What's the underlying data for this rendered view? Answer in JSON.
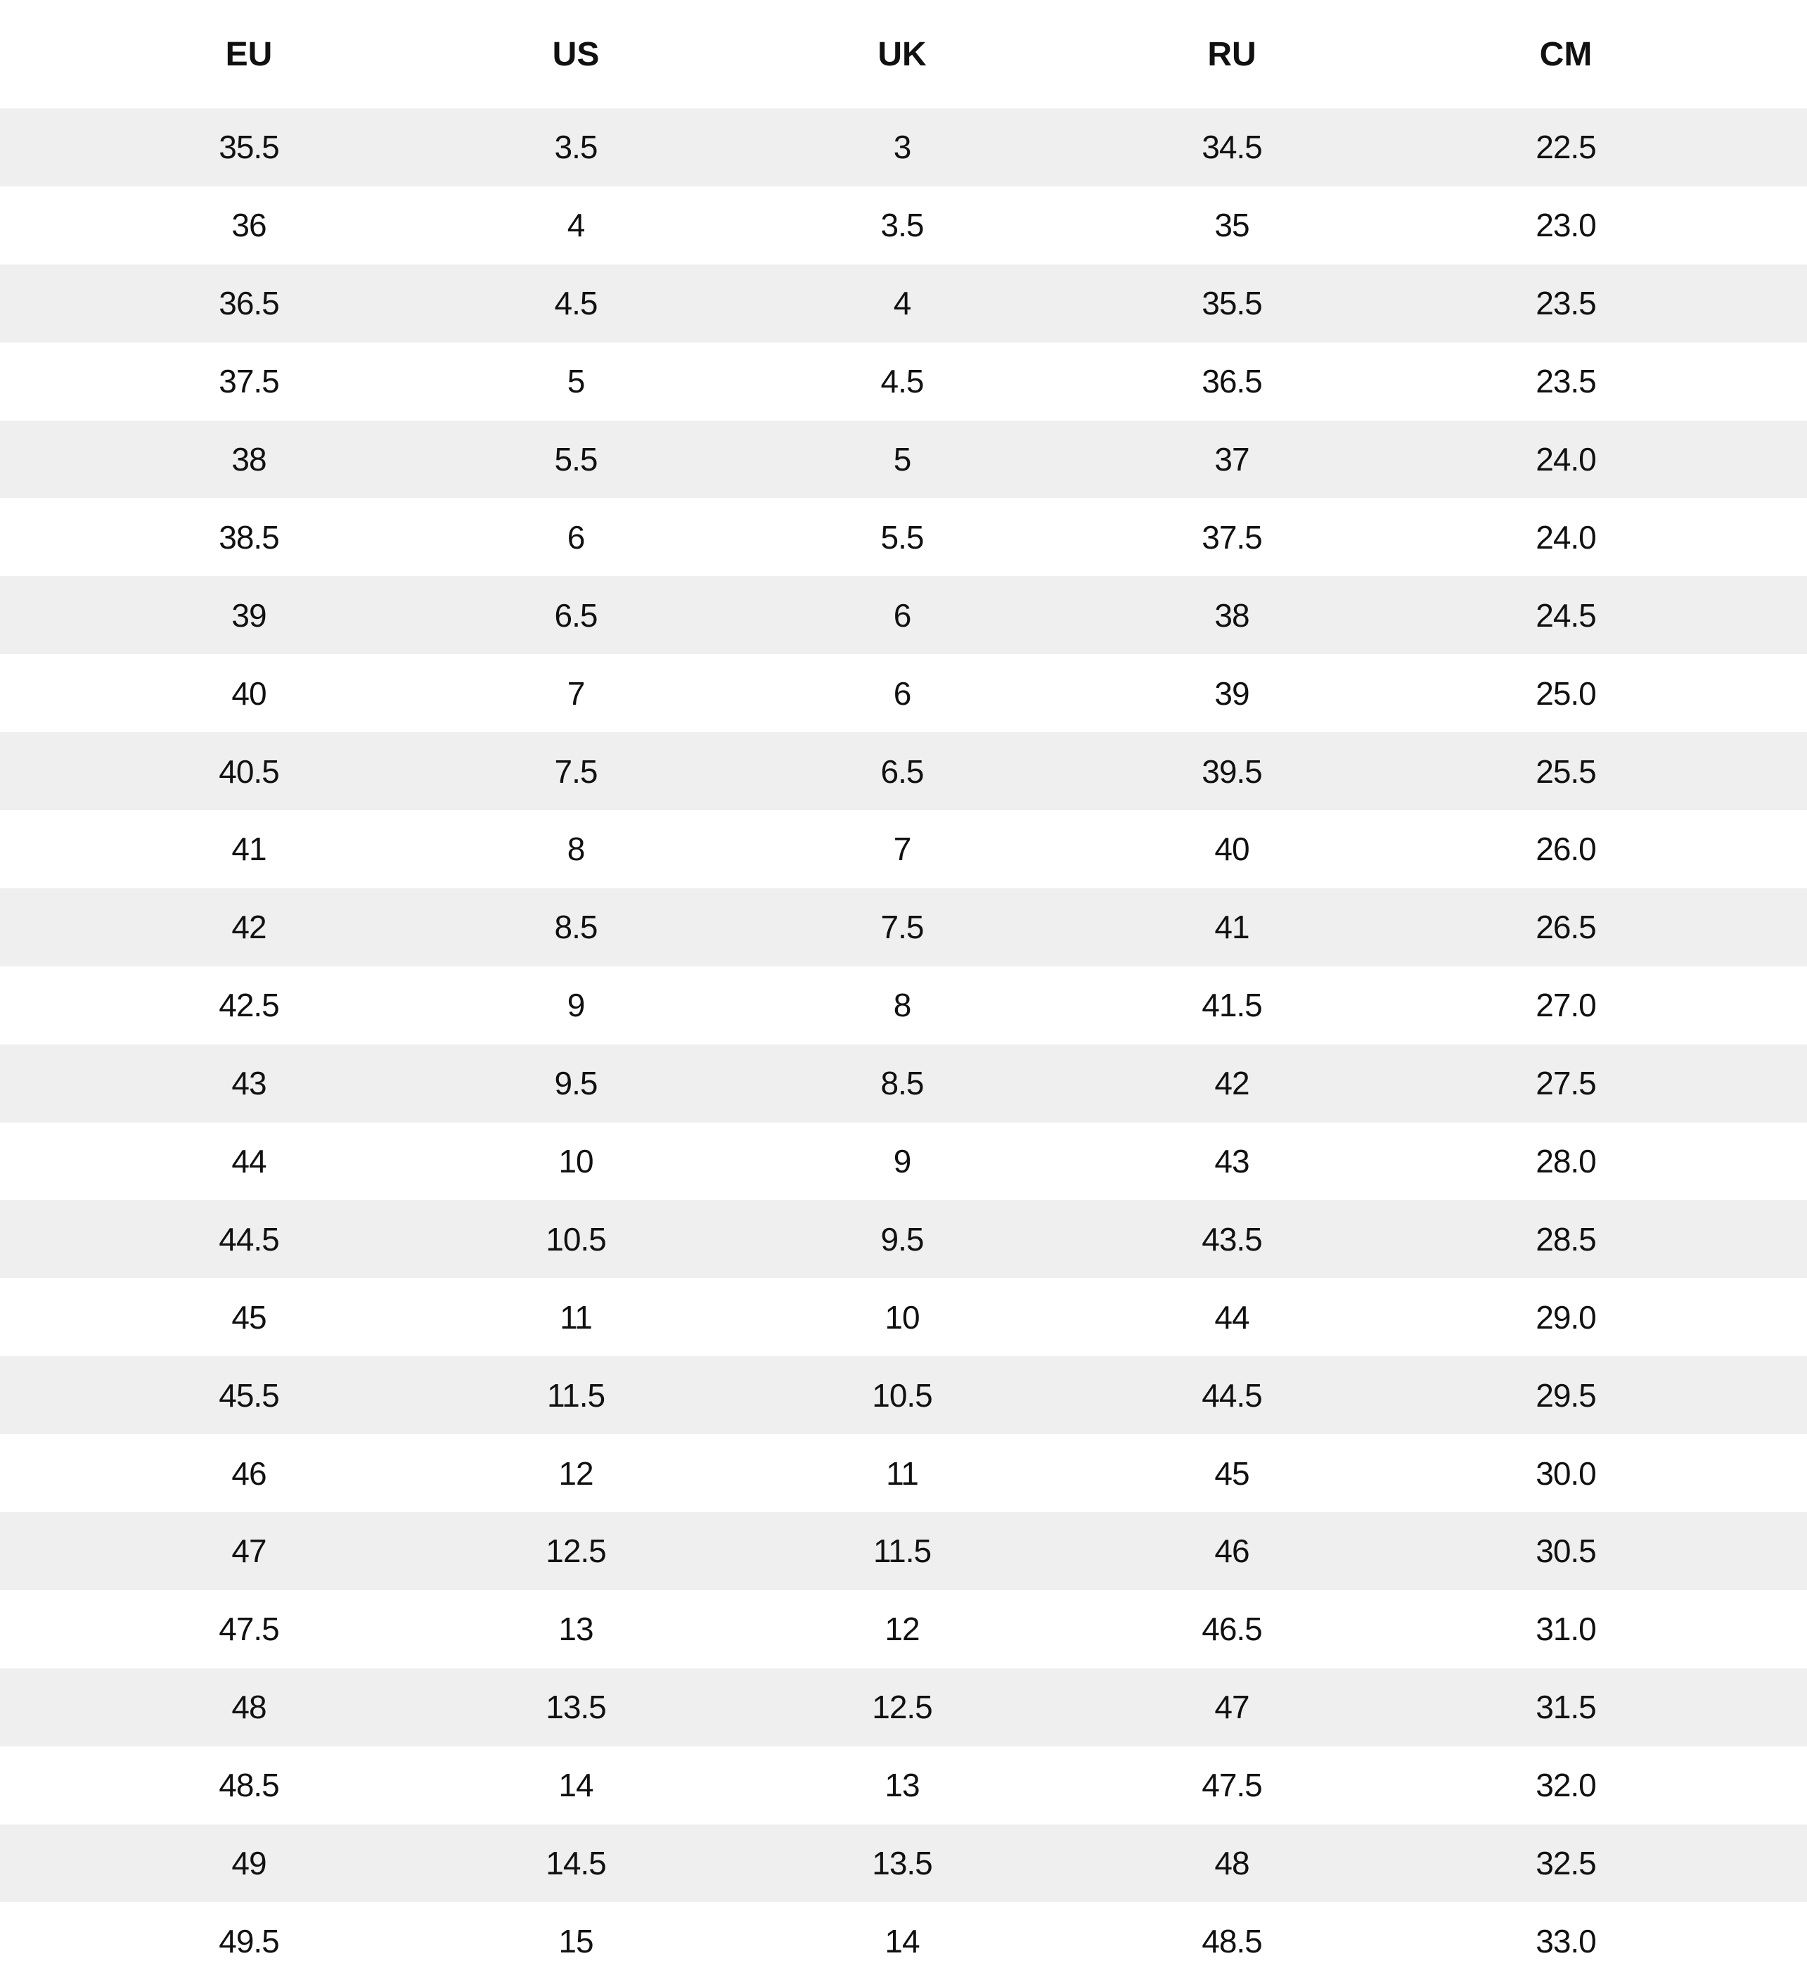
{
  "table": {
    "headers": [
      "EU",
      "US",
      "UK",
      "RU",
      "CM"
    ],
    "rows": [
      [
        "35.5",
        "3.5",
        "3",
        "34.5",
        "22.5"
      ],
      [
        "36",
        "4",
        "3.5",
        "35",
        "23.0"
      ],
      [
        "36.5",
        "4.5",
        "4",
        "35.5",
        "23.5"
      ],
      [
        "37.5",
        "5",
        "4.5",
        "36.5",
        "23.5"
      ],
      [
        "38",
        "5.5",
        "5",
        "37",
        "24.0"
      ],
      [
        "38.5",
        "6",
        "5.5",
        "37.5",
        "24.0"
      ],
      [
        "39",
        "6.5",
        "6",
        "38",
        "24.5"
      ],
      [
        "40",
        "7",
        "6",
        "39",
        "25.0"
      ],
      [
        "40.5",
        "7.5",
        "6.5",
        "39.5",
        "25.5"
      ],
      [
        "41",
        "8",
        "7",
        "40",
        "26.0"
      ],
      [
        "42",
        "8.5",
        "7.5",
        "41",
        "26.5"
      ],
      [
        "42.5",
        "9",
        "8",
        "41.5",
        "27.0"
      ],
      [
        "43",
        "9.5",
        "8.5",
        "42",
        "27.5"
      ],
      [
        "44",
        "10",
        "9",
        "43",
        "28.0"
      ],
      [
        "44.5",
        "10.5",
        "9.5",
        "43.5",
        "28.5"
      ],
      [
        "45",
        "11",
        "10",
        "44",
        "29.0"
      ],
      [
        "45.5",
        "11.5",
        "10.5",
        "44.5",
        "29.5"
      ],
      [
        "46",
        "12",
        "11",
        "45",
        "30.0"
      ],
      [
        "47",
        "12.5",
        "11.5",
        "46",
        "30.5"
      ],
      [
        "47.5",
        "13",
        "12",
        "46.5",
        "31.0"
      ],
      [
        "48",
        "13.5",
        "12.5",
        "47",
        "31.5"
      ],
      [
        "48.5",
        "14",
        "13",
        "47.5",
        "32.0"
      ],
      [
        "49",
        "14.5",
        "13.5",
        "48",
        "32.5"
      ],
      [
        "49.5",
        "15",
        "14",
        "48.5",
        "33.0"
      ]
    ]
  },
  "colors": {
    "stripe": "#efefef",
    "text": "#111111"
  }
}
